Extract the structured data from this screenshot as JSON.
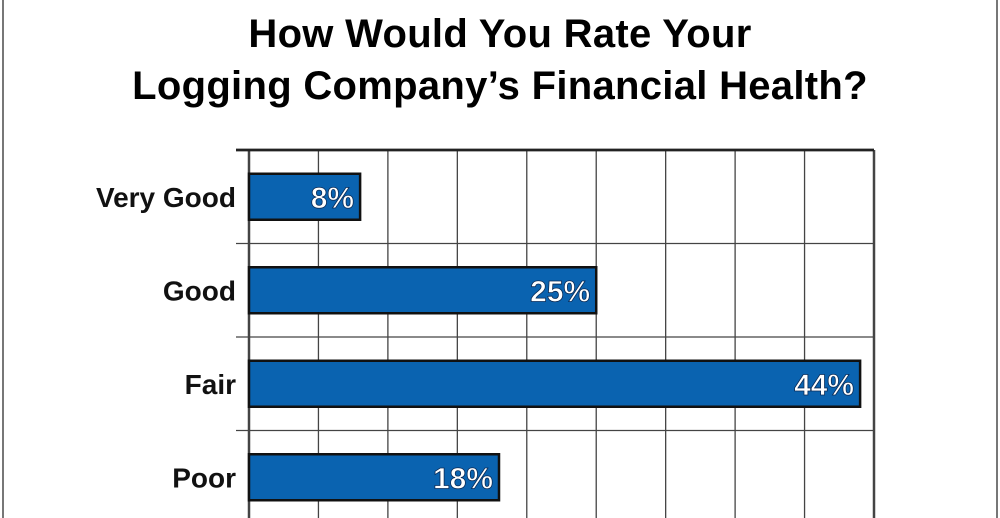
{
  "chart_data": {
    "type": "bar",
    "orientation": "horizontal",
    "title_lines": [
      "How Would You Rate Your",
      "Logging Company’s Financial Health?"
    ],
    "categories": [
      "Very Good",
      "Good",
      "Fair",
      "Poor"
    ],
    "values": [
      8,
      25,
      44,
      18
    ],
    "value_labels": [
      "8%",
      "25%",
      "44%",
      "18%"
    ],
    "xlim": [
      0,
      45
    ],
    "x_grid_step": 5,
    "grid": true,
    "bar_color": "#0a63b0",
    "xlabel": "",
    "ylabel": ""
  }
}
